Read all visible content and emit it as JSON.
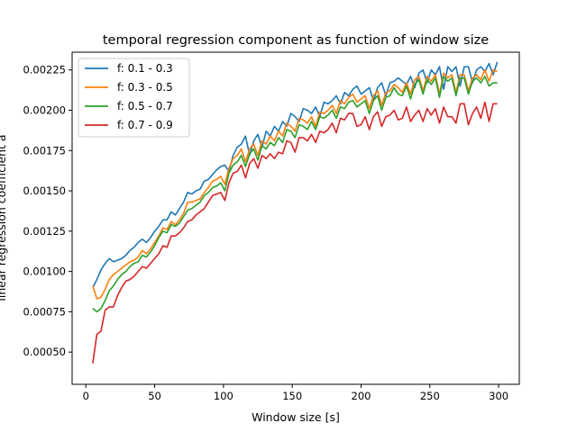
{
  "chart_data": {
    "type": "line",
    "title": "temporal regression component as function of window size",
    "xlabel": "Window size [s]",
    "ylabel": "linear regression coefficient a",
    "xlim": [
      -10,
      315
    ],
    "ylim": [
      0.0003,
      0.00236
    ],
    "x_ticks": [
      0,
      50,
      100,
      150,
      200,
      250,
      300
    ],
    "y_ticks": [
      0.0005,
      0.00075,
      0.001,
      0.00125,
      0.0015,
      0.00175,
      0.002,
      0.00225
    ],
    "x_tick_labels": [
      "0",
      "50",
      "100",
      "150",
      "200",
      "250",
      "300"
    ],
    "y_tick_labels": [
      "0.00050",
      "0.00075",
      "0.00100",
      "0.00125",
      "0.00150",
      "0.00175",
      "0.00200",
      "0.00225"
    ],
    "legend_position": "upper-left",
    "grid": false,
    "x": [
      5,
      8,
      11,
      14,
      17,
      20,
      23,
      26,
      29,
      32,
      35,
      38,
      41,
      44,
      47,
      50,
      53,
      56,
      59,
      62,
      65,
      68,
      71,
      74,
      77,
      80,
      83,
      86,
      89,
      92,
      95,
      98,
      101,
      104,
      107,
      110,
      113,
      116,
      119,
      122,
      125,
      128,
      131,
      134,
      137,
      140,
      143,
      146,
      149,
      152,
      155,
      158,
      161,
      164,
      167,
      170,
      173,
      176,
      179,
      182,
      185,
      188,
      191,
      194,
      197,
      200,
      203,
      206,
      209,
      212,
      215,
      218,
      221,
      224,
      227,
      230,
      233,
      236,
      239,
      242,
      245,
      248,
      251,
      254,
      257,
      260,
      263,
      266,
      269,
      272,
      275,
      278,
      281,
      284,
      287,
      290,
      293,
      296,
      299
    ],
    "series": [
      {
        "name": "f: 0.1 - 0.3",
        "color": "#1f77b4",
        "values": [
          0.0009,
          0.00095,
          0.00101,
          0.00105,
          0.00108,
          0.00106,
          0.00107,
          0.00108,
          0.0011,
          0.00113,
          0.00115,
          0.00118,
          0.0012,
          0.00118,
          0.00121,
          0.00125,
          0.00128,
          0.00132,
          0.00132,
          0.00137,
          0.00135,
          0.00139,
          0.00143,
          0.00149,
          0.00148,
          0.0015,
          0.00151,
          0.00156,
          0.00157,
          0.0016,
          0.00163,
          0.00165,
          0.00166,
          0.00162,
          0.00172,
          0.00177,
          0.00179,
          0.00184,
          0.00172,
          0.00181,
          0.00185,
          0.00177,
          0.00187,
          0.00184,
          0.0019,
          0.00187,
          0.00193,
          0.0019,
          0.00198,
          0.00196,
          0.00193,
          0.00201,
          0.002,
          0.00198,
          0.00202,
          0.00196,
          0.00205,
          0.00204,
          0.00206,
          0.00209,
          0.00204,
          0.00211,
          0.00209,
          0.00213,
          0.00215,
          0.0021,
          0.00212,
          0.00214,
          0.00206,
          0.00214,
          0.00217,
          0.00209,
          0.00217,
          0.00218,
          0.0022,
          0.00218,
          0.00216,
          0.00221,
          0.00214,
          0.00223,
          0.00225,
          0.00217,
          0.00225,
          0.00222,
          0.00227,
          0.00213,
          0.00227,
          0.00224,
          0.00227,
          0.00215,
          0.00227,
          0.00227,
          0.00217,
          0.00225,
          0.00227,
          0.00224,
          0.00229,
          0.00222,
          0.0023
        ]
      },
      {
        "name": "f: 0.3 - 0.5",
        "color": "#ff7f0e",
        "values": [
          0.00091,
          0.00083,
          0.00084,
          0.00089,
          0.00095,
          0.00098,
          0.001,
          0.00102,
          0.00104,
          0.00106,
          0.00107,
          0.00109,
          0.00113,
          0.00111,
          0.00114,
          0.00118,
          0.00122,
          0.00127,
          0.00126,
          0.00131,
          0.00129,
          0.00132,
          0.00136,
          0.00143,
          0.00143,
          0.00144,
          0.00145,
          0.00149,
          0.00152,
          0.00156,
          0.00157,
          0.00159,
          0.00154,
          0.00164,
          0.0017,
          0.00172,
          0.00176,
          0.00168,
          0.00176,
          0.00179,
          0.00172,
          0.00181,
          0.00179,
          0.00184,
          0.00181,
          0.00187,
          0.00184,
          0.00192,
          0.0019,
          0.00187,
          0.00195,
          0.00194,
          0.00192,
          0.00196,
          0.0019,
          0.00199,
          0.00198,
          0.002,
          0.00203,
          0.00198,
          0.00206,
          0.00204,
          0.00208,
          0.0021,
          0.00205,
          0.00207,
          0.00209,
          0.00201,
          0.00209,
          0.00212,
          0.00203,
          0.00211,
          0.00212,
          0.00216,
          0.00214,
          0.00211,
          0.00217,
          0.0021,
          0.00219,
          0.00221,
          0.00212,
          0.00221,
          0.00218,
          0.00222,
          0.0021,
          0.00223,
          0.0022,
          0.00222,
          0.00211,
          0.00222,
          0.00222,
          0.00212,
          0.0022,
          0.00222,
          0.00219,
          0.00225,
          0.00218,
          0.00225,
          0.00224
        ]
      },
      {
        "name": "f: 0.5 - 0.7",
        "color": "#2ca02c",
        "values": [
          0.00077,
          0.00075,
          0.00077,
          0.00082,
          0.00088,
          0.00091,
          0.00095,
          0.00098,
          0.001,
          0.00103,
          0.00105,
          0.00106,
          0.0011,
          0.00109,
          0.00112,
          0.00116,
          0.00121,
          0.00125,
          0.00124,
          0.00129,
          0.00128,
          0.0013,
          0.00134,
          0.00138,
          0.00139,
          0.00141,
          0.00143,
          0.00147,
          0.00149,
          0.00152,
          0.00153,
          0.00155,
          0.0015,
          0.00161,
          0.00166,
          0.00168,
          0.00172,
          0.00165,
          0.00173,
          0.00176,
          0.00169,
          0.00178,
          0.00176,
          0.0018,
          0.00178,
          0.00183,
          0.0018,
          0.00188,
          0.00187,
          0.00183,
          0.00191,
          0.0019,
          0.00188,
          0.00193,
          0.00188,
          0.00196,
          0.00195,
          0.00197,
          0.002,
          0.00195,
          0.00202,
          0.00201,
          0.00205,
          0.00206,
          0.00202,
          0.00204,
          0.00206,
          0.00198,
          0.00206,
          0.00209,
          0.002,
          0.00208,
          0.00209,
          0.00214,
          0.0021,
          0.00209,
          0.00215,
          0.00207,
          0.00216,
          0.00219,
          0.0021,
          0.00219,
          0.00216,
          0.0022,
          0.00208,
          0.00221,
          0.00218,
          0.0022,
          0.00209,
          0.0022,
          0.0022,
          0.0021,
          0.00218,
          0.0022,
          0.00217,
          0.00221,
          0.00215,
          0.00217,
          0.00217
        ]
      },
      {
        "name": "f: 0.7 - 0.9",
        "color": "#d62728",
        "values": [
          0.00043,
          0.00061,
          0.00063,
          0.00076,
          0.00078,
          0.00078,
          0.00085,
          0.0009,
          0.00094,
          0.00095,
          0.00097,
          0.001,
          0.00103,
          0.00102,
          0.00105,
          0.00108,
          0.00111,
          0.00116,
          0.00115,
          0.00122,
          0.00122,
          0.00124,
          0.00127,
          0.00131,
          0.00132,
          0.00135,
          0.00137,
          0.00139,
          0.00143,
          0.00147,
          0.00148,
          0.00149,
          0.00144,
          0.00155,
          0.00161,
          0.00162,
          0.00166,
          0.00158,
          0.00167,
          0.0017,
          0.00164,
          0.00172,
          0.0017,
          0.00173,
          0.0017,
          0.00174,
          0.00173,
          0.00181,
          0.0018,
          0.00174,
          0.00183,
          0.00183,
          0.00181,
          0.00185,
          0.0018,
          0.00187,
          0.00186,
          0.00188,
          0.00192,
          0.00186,
          0.00195,
          0.00194,
          0.00198,
          0.00198,
          0.0019,
          0.00191,
          0.00196,
          0.00188,
          0.00196,
          0.00199,
          0.0019,
          0.00196,
          0.00197,
          0.002,
          0.00194,
          0.00195,
          0.00202,
          0.00193,
          0.00197,
          0.002,
          0.00193,
          0.00201,
          0.00197,
          0.00201,
          0.00192,
          0.00202,
          0.00196,
          0.00196,
          0.00192,
          0.00204,
          0.00204,
          0.00191,
          0.00198,
          0.00202,
          0.00195,
          0.00205,
          0.00193,
          0.00204,
          0.00204
        ]
      }
    ]
  }
}
